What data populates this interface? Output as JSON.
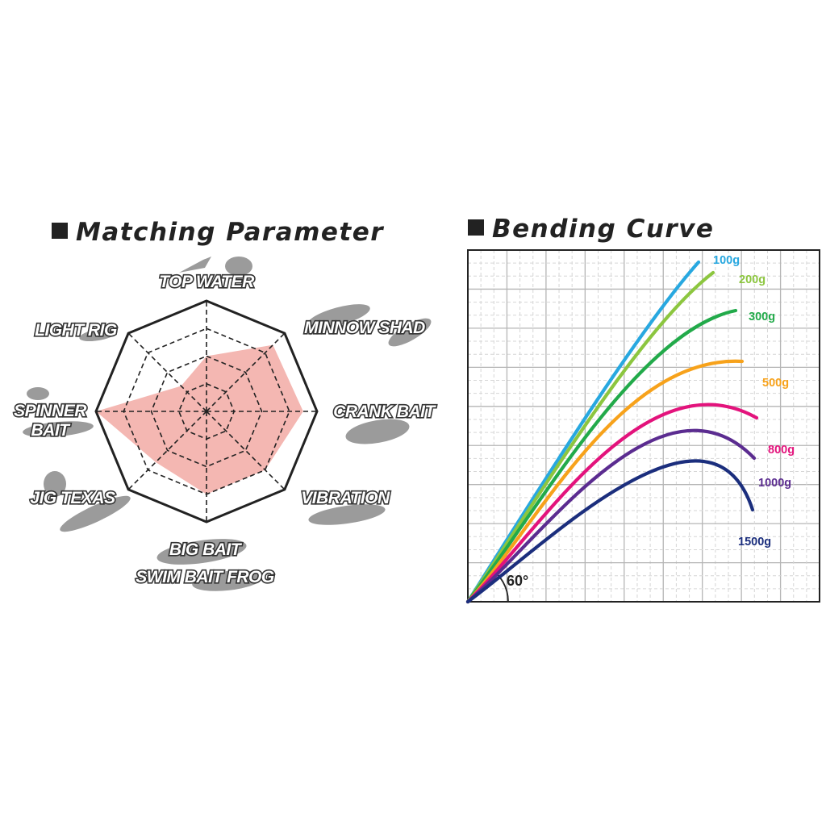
{
  "titles": {
    "matching": "Matching Parameter",
    "bending": "Bending Curve"
  },
  "chart_data": [
    {
      "type": "radar",
      "title": "Matching Parameter",
      "levels": 4,
      "max": 4,
      "categories": [
        [
          "TOP WATER"
        ],
        [
          "MINNOW SHAD"
        ],
        [
          "CRANK BAIT"
        ],
        [
          "VIBRATION"
        ],
        [
          "BIG BAIT",
          "SWIM BAIT  FROG"
        ],
        [
          "JIG  TEXAS"
        ],
        [
          "SPINNER",
          "BAIT"
        ],
        [
          "LIGHT RIG"
        ]
      ],
      "values": [
        2,
        3.4,
        3.5,
        3,
        3,
        2.6,
        4,
        1.3
      ],
      "colors": {
        "fill": "#f4b7b2",
        "outline": "#222222",
        "grid": "#222222"
      }
    },
    {
      "type": "line",
      "title": "Bending Curve",
      "angle_label": "60°",
      "grid": true,
      "series": [
        {
          "name": "100g",
          "color": "#28a8e0"
        },
        {
          "name": "200g",
          "color": "#8cc63f"
        },
        {
          "name": "300g",
          "color": "#22aa4a"
        },
        {
          "name": "500g",
          "color": "#f7a21b"
        },
        {
          "name": "800g",
          "color": "#e3137c"
        },
        {
          "name": "1000g",
          "color": "#5b2c90"
        },
        {
          "name": "1500g",
          "color": "#1b2e7d"
        }
      ]
    }
  ]
}
